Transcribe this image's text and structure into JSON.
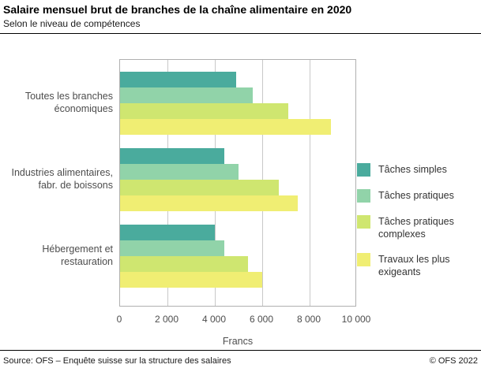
{
  "header": {
    "title": "Salaire mensuel brut de branches de la chaîne alimentaire en 2020",
    "subtitle": "Selon le niveau de compétences"
  },
  "chart_data": {
    "type": "bar",
    "orientation": "horizontal",
    "title": "Salaire mensuel brut de branches de la chaîne alimentaire en 2020",
    "subtitle": "Selon le niveau de compétences",
    "categories": [
      "Toutes les branches économiques",
      "Industries alimentaires, fabr. de boissons",
      "Hébergement et restauration"
    ],
    "category_lines": [
      [
        "Toutes les branches",
        "économiques"
      ],
      [
        "Industries alimentaires,",
        "fabr. de boissons"
      ],
      [
        "Hébergement et",
        "restauration"
      ]
    ],
    "series": [
      {
        "name": "Tâches simples",
        "color": "#4aab9d",
        "values": [
          4900,
          4400,
          4000
        ]
      },
      {
        "name": "Tâches pratiques",
        "color": "#91d3a9",
        "values": [
          5600,
          5000,
          4400
        ]
      },
      {
        "name": "Tâches pratiques complexes",
        "color": "#cfe670",
        "values": [
          7100,
          6700,
          5400
        ]
      },
      {
        "name": "Travaux les plus exigeants",
        "color": "#f0ee73",
        "values": [
          8900,
          7500,
          6000
        ]
      }
    ],
    "xlabel": "Francs",
    "xlim": [
      0,
      10000
    ],
    "xticks": [
      0,
      2000,
      4000,
      6000,
      8000,
      10000
    ],
    "xtick_labels": [
      "0",
      "2 000",
      "4 000",
      "6 000",
      "8 000",
      "10 000"
    ],
    "grid": true,
    "legend_position": "right"
  },
  "footer": {
    "source": "Source: OFS – Enquête suisse sur la structure des salaires",
    "copyright": "© OFS 2022"
  }
}
